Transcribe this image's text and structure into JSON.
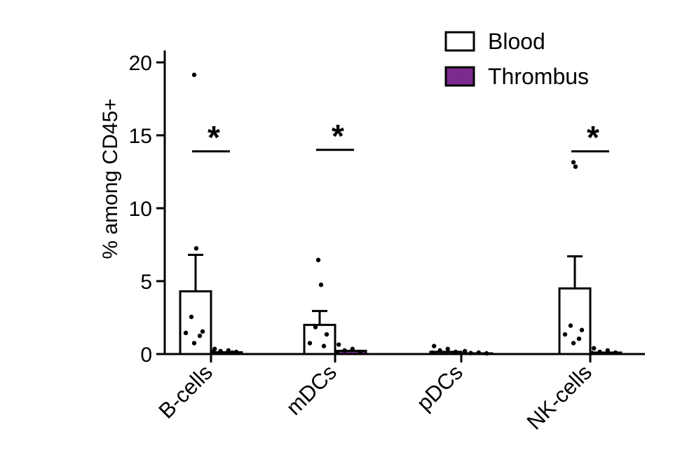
{
  "chart_data": {
    "type": "bar",
    "ylabel": "% among CD45+",
    "ylim": [
      0,
      20
    ],
    "yticks": [
      "0",
      "5",
      "10",
      "15",
      "20"
    ],
    "categories": [
      "B-cells",
      "mDCs",
      "pDCs",
      "NK-cells"
    ],
    "legend_position": "top-right",
    "grid": false,
    "series": [
      {
        "name": "Blood",
        "color": "#ffffff",
        "values": [
          4.3,
          2.0,
          0.15,
          4.5
        ],
        "errors": [
          2.5,
          0.95,
          0.1,
          2.2
        ],
        "points": [
          [
            19.1,
            7.2,
            2.5,
            1.5,
            1.4,
            1.2,
            0.7
          ],
          [
            6.4,
            4.7,
            1.8,
            1.3,
            0.7,
            0.5
          ],
          [
            0.5,
            0.3,
            0.2,
            0.1,
            0.05
          ],
          [
            13.1,
            12.8,
            1.9,
            1.6,
            1.3,
            1.0,
            0.7
          ]
        ]
      },
      {
        "name": "Thrombus",
        "color": "#7b2b8e",
        "values": [
          0.12,
          0.22,
          0.02,
          0.1
        ],
        "errors": [
          0.05,
          0.08,
          0.02,
          0.06
        ],
        "points": [
          [
            0.3,
            0.2,
            0.15,
            0.1,
            0.08,
            0.05
          ],
          [
            0.6,
            0.3,
            0.2,
            0.1,
            0.05
          ],
          [
            0.15,
            0.05,
            0.02,
            0.0
          ],
          [
            0.35,
            0.2,
            0.1,
            0.05,
            0.02
          ]
        ]
      }
    ],
    "significance": [
      {
        "category": "B-cells",
        "label": "*",
        "y": 13.9
      },
      {
        "category": "mDCs",
        "label": "*",
        "y": 14.0
      },
      {
        "category": "NK-cells",
        "label": "*",
        "y": 13.9
      }
    ]
  }
}
